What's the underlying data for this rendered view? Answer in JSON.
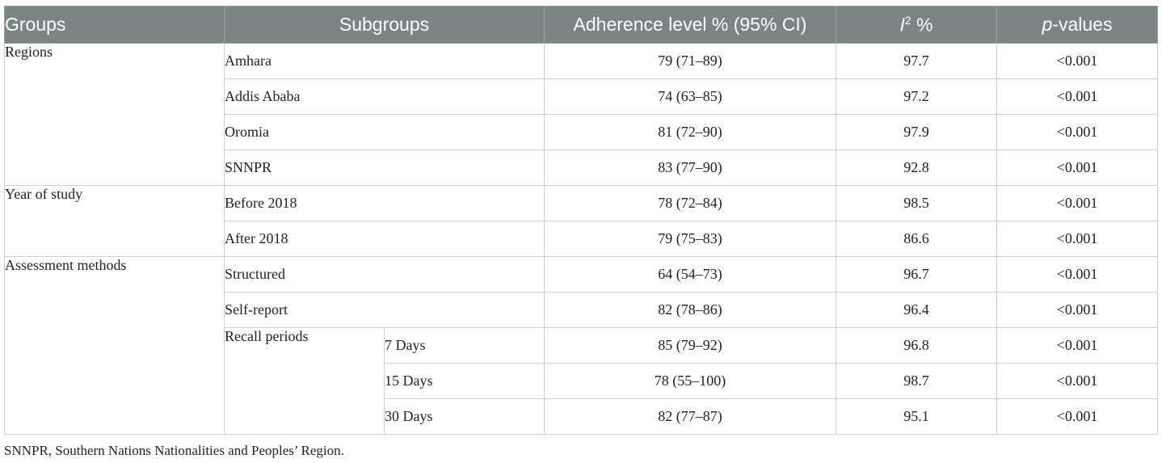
{
  "headers": {
    "groups": "Groups",
    "subgroups": "Subgroups",
    "adherence": "Adherence level % (95% CI)",
    "i2_letter": "I",
    "i2_sup": "2",
    "i2_unit": " %",
    "p_italic": "p",
    "p_rest": "-values"
  },
  "groups": {
    "regions": "Regions",
    "year": "Year of study",
    "assessment": "Assessment methods",
    "recall": "Recall periods"
  },
  "rows": [
    {
      "sub": "Amhara",
      "adh": "79 (71–89)",
      "i2": "97.7",
      "p": "<0.001"
    },
    {
      "sub": "Addis Ababa",
      "adh": "74 (63–85)",
      "i2": "97.2",
      "p": "<0.001"
    },
    {
      "sub": "Oromia",
      "adh": "81 (72–90)",
      "i2": "97.9",
      "p": "<0.001"
    },
    {
      "sub": "SNNPR",
      "adh": "83 (77–90)",
      "i2": "92.8",
      "p": "<0.001"
    },
    {
      "sub": "Before 2018",
      "adh": "78 (72–84)",
      "i2": "98.5",
      "p": "<0.001"
    },
    {
      "sub": "After 2018",
      "adh": "79 (75–83)",
      "i2": "86.6",
      "p": "<0.001"
    },
    {
      "sub": "Structured",
      "adh": "64 (54–73)",
      "i2": "96.7",
      "p": "<0.001"
    },
    {
      "sub": "Self-report",
      "adh": "82 (78–86)",
      "i2": "96.4",
      "p": "<0.001"
    },
    {
      "sub": "7 Days",
      "adh": "85 (79–92)",
      "i2": "96.8",
      "p": "<0.001"
    },
    {
      "sub": "15 Days",
      "adh": "78 (55–100)",
      "i2": "98.7",
      "p": "<0.001"
    },
    {
      "sub": "30 Days",
      "adh": "82 (77–87)",
      "i2": "95.1",
      "p": "<0.001"
    }
  ],
  "footnote": "SNNPR, Southern Nations Nationalities and Peoples’ Region."
}
